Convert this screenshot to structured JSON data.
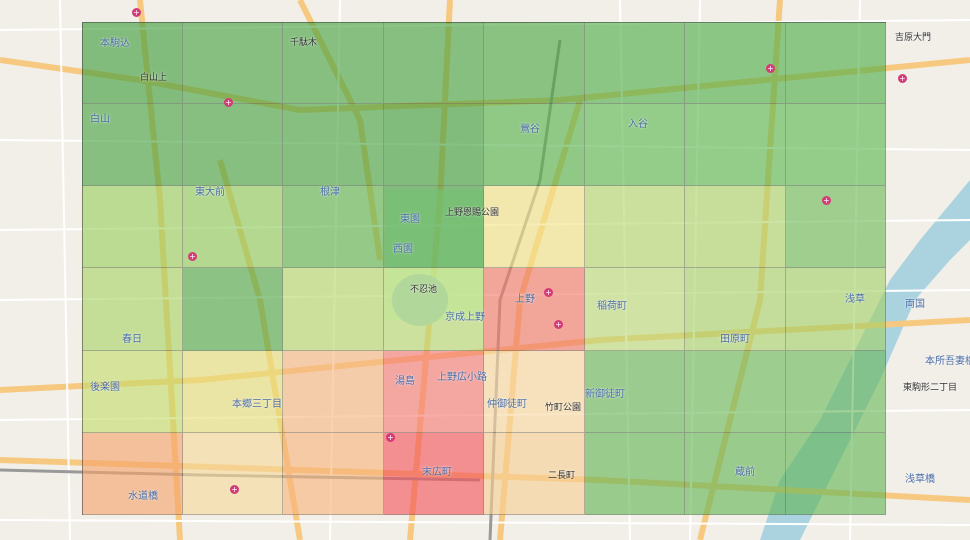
{
  "map": {
    "background_color": "#f2efe9",
    "road_color": "#f7c980",
    "water_color": "#aad3df",
    "labels": [
      "本駒込",
      "白山",
      "白山上",
      "東大前",
      "根津",
      "千駄木",
      "上野恩賜公園",
      "東園",
      "西園",
      "不忍池",
      "京成上野",
      "上野",
      "上野広小路",
      "湯島",
      "仲御徒町",
      "新御徒町",
      "稲荷町",
      "田原町",
      "浅草",
      "蔵前",
      "本郷三丁目",
      "春日",
      "後楽園",
      "水道橋",
      "末広町",
      "竹町公園",
      "二長町",
      "本所吾妻橋",
      "東駒形二丁目",
      "浅草橋",
      "入谷",
      "鶯谷",
      "吉原大門",
      "両国"
    ],
    "station_labels": [
      "白山",
      "東大前",
      "根津",
      "上野",
      "春日",
      "後楽園",
      "水道橋",
      "湯島",
      "上野広小路",
      "仲御徒町",
      "新御徒町",
      "稲荷町",
      "田原町",
      "浅草",
      "蔵前",
      "本郷三丁目",
      "末広町",
      "入谷",
      "鶯谷"
    ]
  },
  "heatmap": {
    "rows": 6,
    "cols": 8,
    "colors": [
      [
        "#3f9e3c",
        "#45a23f",
        "#45a23f",
        "#45a23f",
        "#4aa843",
        "#4fae47",
        "#4fae47",
        "#4fae47"
      ],
      [
        "#45a23f",
        "#45a23f",
        "#45a23f",
        "#3f9e3c",
        "#55b34b",
        "#5cb850",
        "#5cb850",
        "#5cb850"
      ],
      [
        "#9ccf5e",
        "#8fca5a",
        "#5db34c",
        "#3f9e3c",
        "#f3e48a",
        "#b4d76e",
        "#aed46b",
        "#6dbb58"
      ],
      [
        "#a9d466",
        "#4fa846",
        "#b6d86c",
        "#b8da72",
        "#f27a6a",
        "#bcdb7a",
        "#a8d36a",
        "#a4d167"
      ],
      [
        "#c6dc6a",
        "#e8e07c",
        "#f7b883",
        "#f67b76",
        "#f9d9a2",
        "#67b658",
        "#6cb95a",
        "#6cb95a"
      ],
      [
        "#f5a46c",
        "#f6d99a",
        "#f7b57c",
        "#f4555c",
        "#f8cf94",
        "#64b656",
        "#64b656",
        "#64b656"
      ]
    ]
  }
}
